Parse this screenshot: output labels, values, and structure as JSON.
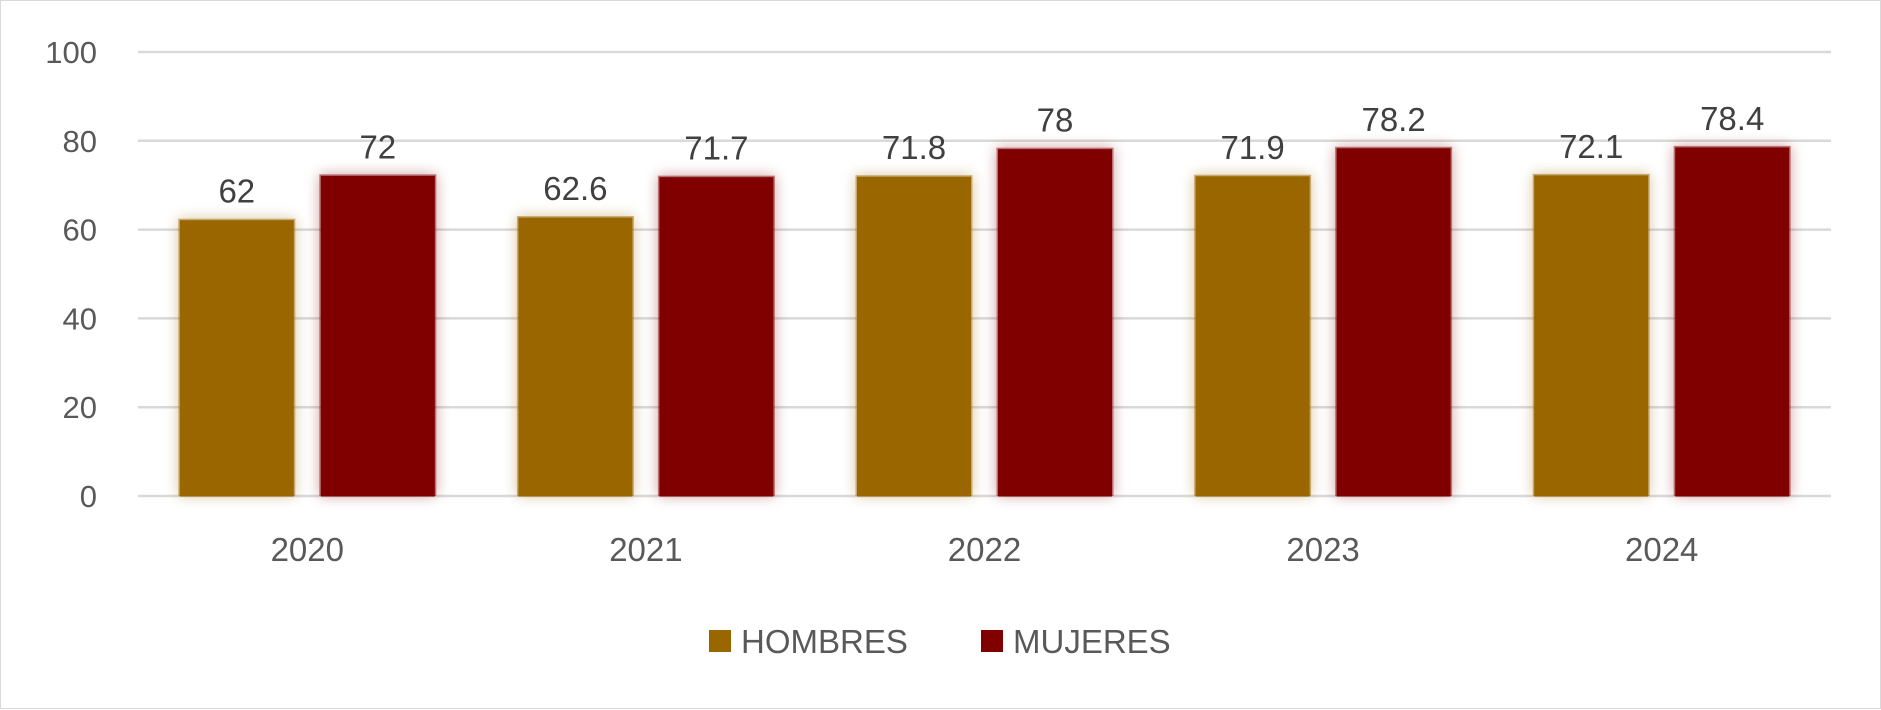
{
  "chart_data": {
    "type": "bar",
    "title": "",
    "xlabel": "",
    "ylabel": "",
    "categories": [
      "2020",
      "2021",
      "2022",
      "2023",
      "2024"
    ],
    "series": [
      {
        "name": "HOMBRES",
        "color": "#996600",
        "values": [
          62,
          62.6,
          71.8,
          71.9,
          72.1
        ],
        "data_labels": [
          "62",
          "62.6",
          "71.8",
          "71.9",
          "72.1"
        ]
      },
      {
        "name": "MUJERES",
        "color": "#800000",
        "values": [
          72,
          71.7,
          78,
          78.2,
          78.4
        ],
        "data_labels": [
          "72",
          "71.7",
          "78",
          "78.2",
          "78.4"
        ]
      }
    ],
    "ylim": [
      0,
      100
    ],
    "yticks": [
      0,
      20,
      40,
      60,
      80,
      100
    ],
    "grid": true,
    "legend_position": "bottom",
    "bar_effect": "glow"
  }
}
